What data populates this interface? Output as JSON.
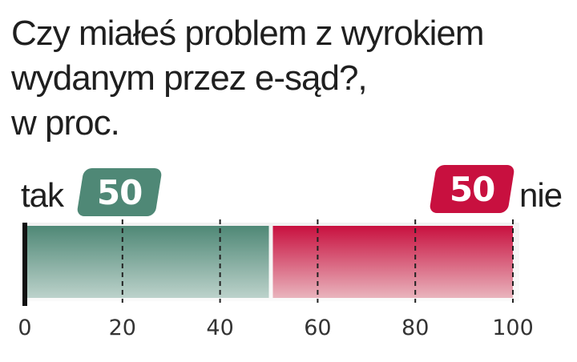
{
  "title_lines": [
    "Czy miałeś problem z wyrokiem",
    "wydanym przez e-sąd?,",
    "w proc."
  ],
  "labels": {
    "left": "tak",
    "right": "nie"
  },
  "badges": {
    "left": "50",
    "right": "50"
  },
  "colors": {
    "tak": "#4f8876",
    "tak_light": "#bcd2cb",
    "nie": "#c8103f",
    "nie_light": "#e9b4bd",
    "axis": "#111111",
    "grid": "#222222"
  },
  "chart_data": {
    "type": "bar",
    "orientation": "horizontal-stacked",
    "categories": [
      ""
    ],
    "series": [
      {
        "name": "tak",
        "values": [
          50
        ]
      },
      {
        "name": "nie",
        "values": [
          50
        ]
      }
    ],
    "xlim": [
      0,
      100
    ],
    "x_ticks": [
      0,
      20,
      40,
      60,
      80,
      100
    ],
    "grid": true
  }
}
